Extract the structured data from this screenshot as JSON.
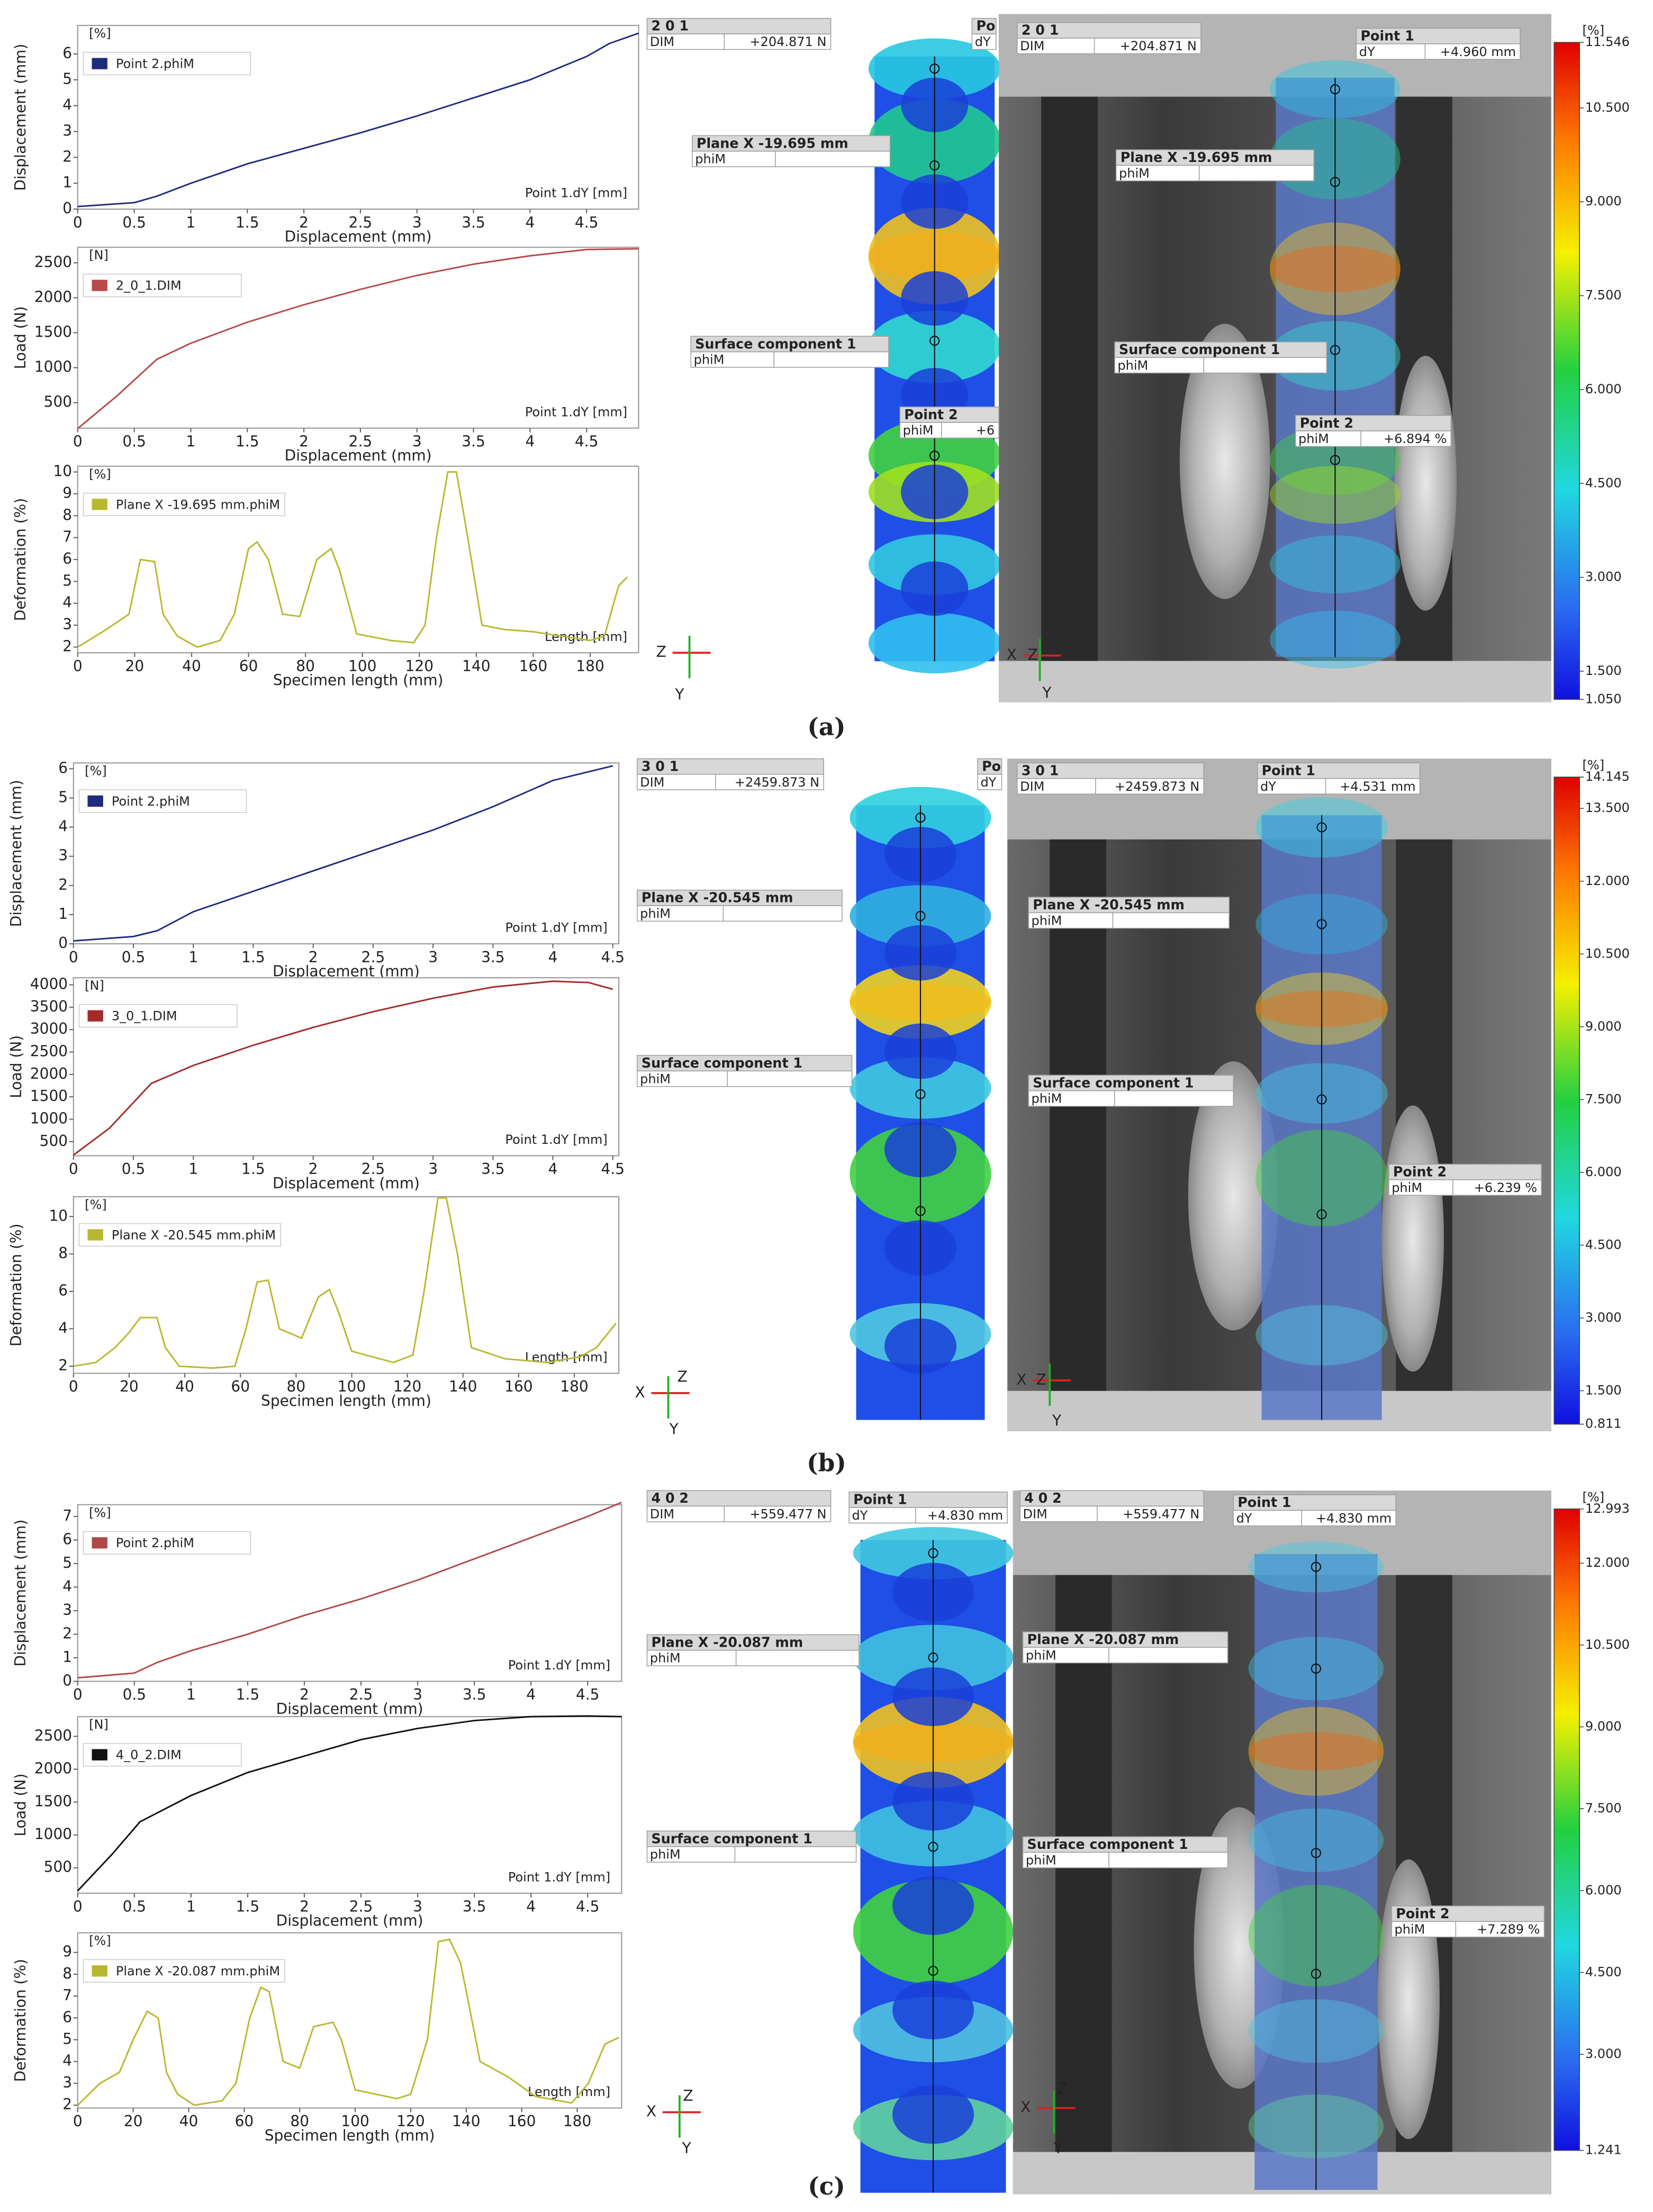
{
  "chart_data": [
    {
      "type": "line",
      "unit": "[%]",
      "ylabel": "Displacement (mm)",
      "xlabel": "Displacement (mm)",
      "corner_label": "Point 1.dY [mm]",
      "xlim": [
        0,
        4.96
      ],
      "ylim": [
        0,
        7.1
      ],
      "xticks": [
        0,
        0.5,
        1,
        1.5,
        2,
        2.5,
        3,
        3.5,
        4,
        4.5
      ],
      "yticks": [
        0,
        1,
        2,
        3,
        4,
        5,
        6
      ],
      "x": [
        0,
        0.5,
        0.7,
        1,
        1.5,
        2,
        2.5,
        3,
        3.5,
        4,
        4.5,
        4.7,
        4.96
      ],
      "series": [
        {
          "name": "Point 2.phiM",
          "color": "#1f2b7b",
          "values": [
            0.1,
            0.25,
            0.5,
            1.0,
            1.75,
            2.35,
            2.95,
            3.6,
            4.3,
            5.0,
            5.9,
            6.4,
            6.8
          ]
        }
      ]
    },
    {
      "type": "line",
      "unit": "[N]",
      "ylabel": "Load (N)",
      "xlabel": "Displacement (mm)",
      "corner_label": "Point 1.dY [mm]",
      "xlim": [
        0,
        4.96
      ],
      "ylim": [
        136,
        2722
      ],
      "xticks": [
        0,
        0.5,
        1,
        1.5,
        2,
        2.5,
        3,
        3.5,
        4,
        4.5
      ],
      "yticks": [
        500,
        1000,
        1500,
        2000,
        2500
      ],
      "x": [
        0,
        0.35,
        0.7,
        1,
        1.5,
        2,
        2.5,
        3,
        3.5,
        4,
        4.5,
        4.96
      ],
      "series": [
        {
          "name": "2_0_1.DIM",
          "color": "#b84a4a",
          "values": [
            130,
            600,
            1120,
            1350,
            1650,
            1900,
            2120,
            2320,
            2480,
            2600,
            2690,
            2700
          ]
        }
      ]
    },
    {
      "type": "line",
      "unit": "[%]",
      "ylabel": "Deformation (%)",
      "xlabel": "Specimen length (mm)",
      "corner_label": "Length [mm]",
      "xlim": [
        0,
        197
      ],
      "ylim": [
        1.74,
        10.26
      ],
      "xticks": [
        0,
        20,
        40,
        60,
        80,
        100,
        120,
        140,
        160,
        180
      ],
      "yticks": [
        2,
        3,
        4,
        5,
        6,
        7,
        8,
        9,
        10
      ],
      "x": [
        0,
        10,
        18,
        22,
        27,
        30,
        35,
        42,
        50,
        55,
        60,
        63,
        67,
        72,
        78,
        84,
        89,
        92,
        98,
        110,
        118,
        122,
        126,
        130,
        133,
        137,
        142,
        150,
        160,
        170,
        180,
        185,
        190,
        193
      ],
      "series": [
        {
          "name": "Plane X -19.695 mm.phiM",
          "color": "#b8b830",
          "values": [
            2,
            2.8,
            3.5,
            6,
            5.9,
            3.5,
            2.5,
            2,
            2.3,
            3.5,
            6.5,
            6.8,
            6,
            3.5,
            3.4,
            6,
            6.5,
            5.5,
            2.6,
            2.3,
            2.2,
            3,
            7,
            10,
            10,
            7,
            3,
            2.8,
            2.7,
            2.5,
            2.3,
            2.5,
            4.8,
            5.2
          ]
        }
      ]
    },
    {
      "type": "line",
      "unit": "[%]",
      "ylabel": "Displacement (mm)",
      "xlabel": "Displacement (mm)",
      "corner_label": "Point 1.dY [mm]",
      "xlim": [
        0,
        4.55
      ],
      "ylim": [
        0,
        6.2
      ],
      "xticks": [
        0,
        0.5,
        1,
        1.5,
        2,
        2.5,
        3,
        3.5,
        4,
        4.5
      ],
      "yticks": [
        0,
        1,
        2,
        3,
        4,
        5,
        6
      ],
      "x": [
        0,
        0.5,
        0.7,
        1,
        1.5,
        2,
        2.5,
        3,
        3.5,
        4,
        4.5
      ],
      "series": [
        {
          "name": "Point 2.phiM",
          "color": "#1f2b7b",
          "values": [
            0.1,
            0.25,
            0.45,
            1.1,
            1.8,
            2.5,
            3.2,
            3.9,
            4.7,
            5.6,
            6.1
          ]
        }
      ]
    },
    {
      "type": "line",
      "unit": "[N]",
      "ylabel": "Load (N)",
      "xlabel": "Displacement (mm)",
      "corner_label": "Point 1.dY [mm]",
      "xlim": [
        0,
        4.55
      ],
      "ylim": [
        185,
        4158
      ],
      "xticks": [
        0,
        0.5,
        1,
        1.5,
        2,
        2.5,
        3,
        3.5,
        4,
        4.5
      ],
      "yticks": [
        500,
        1000,
        1500,
        2000,
        2500,
        3000,
        3500,
        4000
      ],
      "x": [
        0,
        0.3,
        0.65,
        1,
        1.5,
        2,
        2.5,
        3,
        3.5,
        4,
        4.3,
        4.5
      ],
      "series": [
        {
          "name": "3_0_1.DIM",
          "color": "#a52a2a",
          "values": [
            200,
            800,
            1800,
            2200,
            2650,
            3050,
            3400,
            3700,
            3950,
            4080,
            4050,
            3900
          ]
        }
      ]
    },
    {
      "type": "line",
      "unit": "[%]",
      "ylabel": "Deformation (%)",
      "xlabel": "Specimen length (mm)",
      "corner_label": "Length [mm]",
      "xlim": [
        0,
        196
      ],
      "ylim": [
        1.62,
        11.06
      ],
      "xticks": [
        0,
        20,
        40,
        60,
        80,
        100,
        120,
        140,
        160,
        180
      ],
      "yticks": [
        2,
        4,
        6,
        8,
        10
      ],
      "x": [
        0,
        8,
        15,
        20,
        24,
        30,
        33,
        38,
        50,
        58,
        62,
        66,
        70,
        74,
        82,
        88,
        92,
        95,
        100,
        115,
        122,
        126,
        131,
        134,
        138,
        143,
        155,
        170,
        182,
        188,
        195
      ],
      "series": [
        {
          "name": "Plane X -20.545 mm.phiM",
          "color": "#b8b830",
          "values": [
            2,
            2.2,
            3,
            3.8,
            4.6,
            4.6,
            3,
            2,
            1.9,
            2,
            4,
            6.5,
            6.6,
            4,
            3.5,
            5.7,
            6.1,
            5,
            2.8,
            2.2,
            2.6,
            6,
            11,
            11,
            8,
            3,
            2.4,
            2.2,
            2.5,
            3,
            4.3
          ]
        }
      ]
    },
    {
      "type": "line",
      "unit": "[%]",
      "ylabel": "Displacement (mm)",
      "xlabel": "Displacement (mm)",
      "corner_label": "Point 1.dY [mm]",
      "xlim": [
        0,
        4.8
      ],
      "ylim": [
        0,
        7.5
      ],
      "xticks": [
        0,
        0.5,
        1,
        1.5,
        2,
        2.5,
        3,
        3.5,
        4,
        4.5
      ],
      "yticks": [
        0,
        1,
        2,
        3,
        4,
        5,
        6,
        7
      ],
      "x": [
        0,
        0.5,
        0.7,
        1,
        1.5,
        2,
        2.5,
        3,
        3.5,
        4,
        4.5,
        4.8
      ],
      "series": [
        {
          "name": "Point 2.phiM",
          "color": "#b04848",
          "values": [
            0.15,
            0.35,
            0.8,
            1.3,
            2.0,
            2.8,
            3.5,
            4.3,
            5.2,
            6.1,
            7.0,
            7.6
          ]
        }
      ]
    },
    {
      "type": "line",
      "unit": "[N]",
      "ylabel": "Load (N)",
      "xlabel": "Displacement (mm)",
      "corner_label": "Point 1.dY [mm]",
      "xlim": [
        0,
        4.8
      ],
      "ylim": [
        113,
        2800
      ],
      "xticks": [
        0,
        0.5,
        1,
        1.5,
        2,
        2.5,
        3,
        3.5,
        4,
        4.5
      ],
      "yticks": [
        500,
        1000,
        1500,
        2000,
        2500
      ],
      "x": [
        0,
        0.3,
        0.55,
        1,
        1.5,
        2,
        2.5,
        3,
        3.5,
        4,
        4.5,
        4.8
      ],
      "series": [
        {
          "name": "4_0_2.DIM",
          "color": "#111111",
          "values": [
            150,
            700,
            1200,
            1600,
            1950,
            2200,
            2450,
            2620,
            2740,
            2800,
            2810,
            2800
          ]
        }
      ]
    },
    {
      "type": "line",
      "unit": "[%]",
      "ylabel": "Deformation (%)",
      "xlabel": "Specimen length (mm)",
      "corner_label": "Length [mm]",
      "xlim": [
        0,
        196
      ],
      "ylim": [
        1.87,
        9.9
      ],
      "xticks": [
        0,
        20,
        40,
        60,
        80,
        100,
        120,
        140,
        160,
        180
      ],
      "yticks": [
        2,
        3,
        4,
        5,
        6,
        7,
        8,
        9
      ],
      "x": [
        0,
        8,
        15,
        20,
        25,
        29,
        32,
        36,
        42,
        52,
        57,
        62,
        66,
        69,
        74,
        80,
        85,
        92,
        95,
        100,
        115,
        120,
        126,
        130,
        134,
        138,
        145,
        155,
        165,
        178,
        184,
        190,
        195
      ],
      "series": [
        {
          "name": "Plane X -20.087 mm.phiM",
          "color": "#b8b830",
          "values": [
            2,
            3,
            3.5,
            5,
            6.3,
            6,
            3.5,
            2.5,
            2,
            2.2,
            3,
            6,
            7.4,
            7.2,
            4,
            3.7,
            5.6,
            5.8,
            5,
            2.7,
            2.3,
            2.5,
            5,
            9.5,
            9.6,
            8.5,
            4,
            3.3,
            2.4,
            2.1,
            3,
            4.8,
            5.1
          ]
        }
      ]
    }
  ],
  "panels": [
    {
      "label": "(a)",
      "map_labels": [
        {
          "title": "2 0 1",
          "rows": [
            [
              "DIM",
              "+204.871 N"
            ]
          ]
        },
        {
          "title": "Po",
          "rows": [
            [
              "dY"
            ]
          ]
        },
        {
          "title": "Plane X -19.695 mm",
          "rows": [
            [
              "phiM"
            ]
          ]
        },
        {
          "title": "Surface component 1",
          "rows": [
            [
              "phiM"
            ]
          ]
        },
        {
          "title": "Point 2",
          "rows": [
            [
              "phiM",
              "+6"
            ]
          ]
        }
      ],
      "photo_labels": [
        {
          "title": "2 0 1",
          "rows": [
            [
              "DIM",
              "+204.871 N"
            ]
          ]
        },
        {
          "title": "Point 1",
          "rows": [
            [
              "dY",
              "+4.960 mm"
            ]
          ]
        },
        {
          "title": "Plane X -19.695 mm",
          "rows": [
            [
              "phiM"
            ]
          ]
        },
        {
          "title": "Surface component 1",
          "rows": [
            [
              "phiM"
            ]
          ]
        },
        {
          "title": "Point 2",
          "rows": [
            [
              "phiM",
              "+6.894 %"
            ]
          ]
        }
      ],
      "colorbar": {
        "unit": "[%]",
        "lim": [
          1.05,
          11.546
        ],
        "ticks": [
          11.546,
          {
            "value": 10.5,
            "label": "10.500"
          },
          {
            "value": 9,
            "label": "9.000"
          },
          {
            "value": 7.5,
            "label": "7.500"
          },
          {
            "value": 6,
            "label": "6.000"
          },
          {
            "value": 4.5,
            "label": "4.500"
          },
          {
            "value": 3,
            "label": "3.000"
          },
          {
            "value": 1.5,
            "label": "1.500"
          },
          {
            "value": 1.05,
            "label": "1.050"
          }
        ]
      },
      "triads": {
        "chart": [
          "Z",
          "Y"
        ],
        "photo": [
          "X",
          "Z",
          "Y"
        ]
      }
    },
    {
      "label": "(b)",
      "map_labels": [
        {
          "title": "3 0 1",
          "rows": [
            [
              "DIM",
              "+2459.873 N"
            ]
          ]
        },
        {
          "title": "Po",
          "rows": [
            [
              "dY"
            ]
          ]
        },
        {
          "title": "Plane X -20.545 mm",
          "rows": [
            [
              "phiM"
            ]
          ]
        },
        {
          "title": "Surface component 1",
          "rows": [
            [
              "phiM"
            ]
          ]
        }
      ],
      "photo_labels": [
        {
          "title": "3 0 1",
          "rows": [
            [
              "DIM",
              "+2459.873 N"
            ]
          ]
        },
        {
          "title": "Point 1",
          "rows": [
            [
              "dY",
              "+4.531 mm"
            ]
          ]
        },
        {
          "title": "Plane X -20.545 mm",
          "rows": [
            [
              "phiM"
            ]
          ]
        },
        {
          "title": "Surface component 1",
          "rows": [
            [
              "phiM"
            ]
          ]
        },
        {
          "title": "Point 2",
          "rows": [
            [
              "phiM",
              "+6.239 %"
            ]
          ]
        }
      ],
      "colorbar": {
        "unit": "[%]",
        "lim": [
          0.811,
          14.145
        ],
        "ticks": [
          14.145,
          {
            "value": 13.5,
            "label": "13.500"
          },
          {
            "value": 12,
            "label": "12.000"
          },
          {
            "value": 10.5,
            "label": "10.500"
          },
          {
            "value": 9,
            "label": "9.000"
          },
          {
            "value": 7.5,
            "label": "7.500"
          },
          {
            "value": 6,
            "label": "6.000"
          },
          {
            "value": 4.5,
            "label": "4.500"
          },
          {
            "value": 3,
            "label": "3.000"
          },
          {
            "value": 1.5,
            "label": "1.500"
          },
          0.811
        ]
      },
      "triads": {
        "chart": [
          "X",
          "Z",
          "Y"
        ],
        "photo": [
          "X",
          "Z",
          "Y"
        ]
      }
    },
    {
      "label": "(c)",
      "map_labels": [
        {
          "title": "4 0 2",
          "rows": [
            [
              "DIM",
              "+559.477 N"
            ]
          ]
        },
        {
          "title": "Point 1",
          "rows": [
            [
              "dY",
              "+4.830 mm"
            ]
          ]
        },
        {
          "title": "Plane X -20.087 mm",
          "rows": [
            [
              "phiM"
            ]
          ]
        },
        {
          "title": "Surface component 1",
          "rows": [
            [
              "phiM"
            ]
          ]
        }
      ],
      "photo_labels": [
        {
          "title": "4 0 2",
          "rows": [
            [
              "DIM",
              "+559.477 N"
            ]
          ]
        },
        {
          "title": "Point 1",
          "rows": [
            [
              "dY",
              "+4.830 mm"
            ]
          ]
        },
        {
          "title": "Plane X -20.087 mm",
          "rows": [
            [
              "phiM"
            ]
          ]
        },
        {
          "title": "Surface component 1",
          "rows": [
            [
              "phiM"
            ]
          ]
        },
        {
          "title": "Point 2",
          "rows": [
            [
              "phiM",
              "+7.289 %"
            ]
          ]
        }
      ],
      "colorbar": {
        "unit": "[%]",
        "lim": [
          1.241,
          12.993
        ],
        "ticks": [
          12.993,
          {
            "value": 12,
            "label": "12.000"
          },
          {
            "value": 10.5,
            "label": "10.500"
          },
          {
            "value": 9,
            "label": "9.000"
          },
          {
            "value": 7.5,
            "label": "7.500"
          },
          {
            "value": 6,
            "label": "6.000"
          },
          {
            "value": 4.5,
            "label": "4.500"
          },
          {
            "value": 3,
            "label": "3.000"
          },
          1.241
        ]
      },
      "triads": {
        "chart": [
          "X",
          "Z",
          "Y"
        ],
        "photo": [
          "X",
          "Z",
          "Y"
        ]
      }
    }
  ]
}
